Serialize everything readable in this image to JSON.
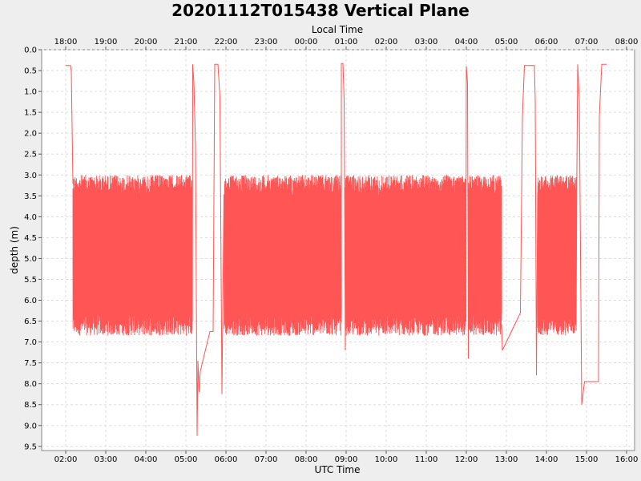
{
  "chart_data": {
    "type": "line",
    "title": "20201112T015438 Vertical Plane",
    "xlabel": "UTC Time",
    "x2label": "Local Time",
    "ylabel": "depth (m)",
    "y_inverted": true,
    "ylim": [
      0.0,
      9.6
    ],
    "xlim_hours": [
      1.4,
      16.2
    ],
    "x_ticks": [
      "02:00",
      "03:00",
      "04:00",
      "05:00",
      "06:00",
      "07:00",
      "08:00",
      "09:00",
      "10:00",
      "11:00",
      "12:00",
      "13:00",
      "14:00",
      "15:00",
      "16:00"
    ],
    "x2_ticks": [
      "18:00",
      "19:00",
      "20:00",
      "21:00",
      "22:00",
      "23:00",
      "00:00",
      "01:00",
      "02:00",
      "03:00",
      "04:00",
      "05:00",
      "06:00",
      "07:00",
      "08:00"
    ],
    "y_ticks": [
      "0.0",
      "0.5",
      "1.0",
      "1.5",
      "2.0",
      "2.5",
      "3.0",
      "3.5",
      "4.0",
      "4.5",
      "5.0",
      "5.5",
      "6.0",
      "6.5",
      "7.0",
      "7.5",
      "8.0",
      "8.5",
      "9.0",
      "9.5"
    ],
    "grid": true,
    "series_color": "#ff5555",
    "series": [
      {
        "profiles": [
          {
            "start": 2.18,
            "end": 5.16,
            "top": 3.3,
            "bottom": 6.6
          },
          {
            "start": 5.95,
            "end": 8.88,
            "top": 3.3,
            "bottom": 6.6
          },
          {
            "start": 8.98,
            "end": 11.99,
            "top": 3.3,
            "bottom": 6.6
          },
          {
            "start": 12.05,
            "end": 12.88,
            "top": 3.3,
            "bottom": 6.6
          },
          {
            "start": 13.78,
            "end": 14.74,
            "top": 3.3,
            "bottom": 6.6
          }
        ],
        "points": [
          [
            2.0,
            0.38
          ],
          [
            2.12,
            0.38
          ],
          [
            2.14,
            0.5
          ],
          [
            2.16,
            1.85
          ],
          [
            2.18,
            3.2
          ],
          [
            5.16,
            6.5
          ],
          [
            5.17,
            0.35
          ],
          [
            5.2,
            0.8
          ],
          [
            5.24,
            2.3
          ],
          [
            5.28,
            9.25
          ],
          [
            5.3,
            7.45
          ],
          [
            5.33,
            8.2
          ],
          [
            5.36,
            7.7
          ],
          [
            5.6,
            6.75
          ],
          [
            5.68,
            6.75
          ],
          [
            5.72,
            0.35
          ],
          [
            5.8,
            0.35
          ],
          [
            5.85,
            1.15
          ],
          [
            5.9,
            8.25
          ],
          [
            5.95,
            3.5
          ],
          [
            8.88,
            6.5
          ],
          [
            8.88,
            0.33
          ],
          [
            8.92,
            0.33
          ],
          [
            8.95,
            1.2
          ],
          [
            8.98,
            7.2
          ],
          [
            8.99,
            3.4
          ],
          [
            11.99,
            6.5
          ],
          [
            12.0,
            0.4
          ],
          [
            12.03,
            0.8
          ],
          [
            12.05,
            7.4
          ],
          [
            12.06,
            3.5
          ],
          [
            12.88,
            6.6
          ],
          [
            12.9,
            7.2
          ],
          [
            13.35,
            6.3
          ],
          [
            13.4,
            1.6
          ],
          [
            13.45,
            0.38
          ],
          [
            13.7,
            0.38
          ],
          [
            13.72,
            1.2
          ],
          [
            13.75,
            7.8
          ],
          [
            13.78,
            3.5
          ],
          [
            14.74,
            6.6
          ],
          [
            14.76,
            2.8
          ],
          [
            14.78,
            0.35
          ],
          [
            14.82,
            1.2
          ],
          [
            14.88,
            8.5
          ],
          [
            14.95,
            7.95
          ],
          [
            15.3,
            7.95
          ],
          [
            15.32,
            1.6
          ],
          [
            15.38,
            0.35
          ],
          [
            15.5,
            0.35
          ]
        ]
      }
    ]
  }
}
